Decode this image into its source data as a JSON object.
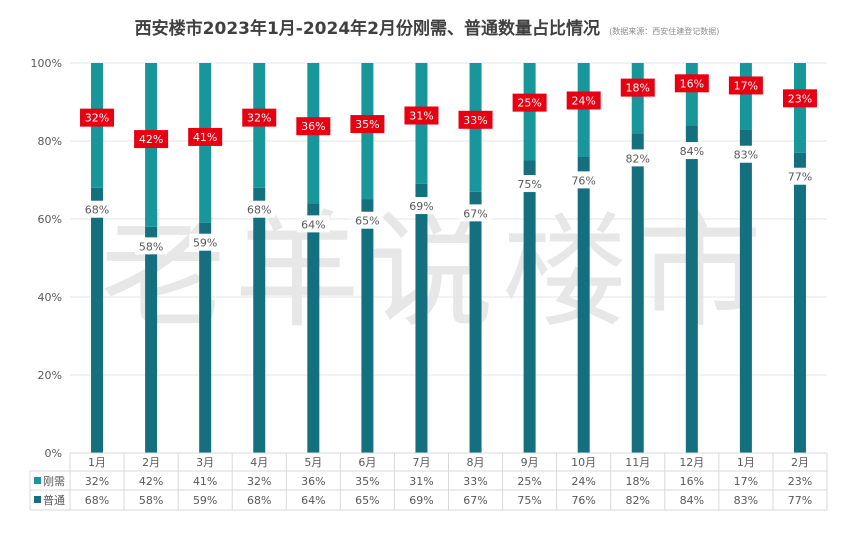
{
  "title": "西安楼市2023年1月-2024年2月份刚需、普通数量占比情况",
  "source": "(数据来源：西安住建登记数据)",
  "watermark": "老羊说楼市",
  "colors": {
    "rigid": "#17979b",
    "ordinary": "#146f7f",
    "label_bg": "#e60012",
    "grid": "#e6e6e6"
  },
  "chart_data": {
    "type": "bar",
    "stacked": "percent",
    "categories": [
      "1月",
      "2月",
      "3月",
      "4月",
      "5月",
      "6月",
      "7月",
      "8月",
      "9月",
      "10月",
      "11月",
      "12月",
      "1月",
      "2月"
    ],
    "series": [
      {
        "name": "刚需",
        "values": [
          32,
          42,
          41,
          32,
          36,
          35,
          31,
          33,
          25,
          24,
          18,
          16,
          17,
          23
        ]
      },
      {
        "name": "普通",
        "values": [
          68,
          58,
          59,
          68,
          64,
          65,
          69,
          67,
          75,
          76,
          82,
          84,
          83,
          77
        ]
      }
    ],
    "y_ticks": [
      "0%",
      "20%",
      "40%",
      "60%",
      "80%",
      "100%"
    ],
    "ylim": [
      0,
      100
    ],
    "data_table": true
  }
}
